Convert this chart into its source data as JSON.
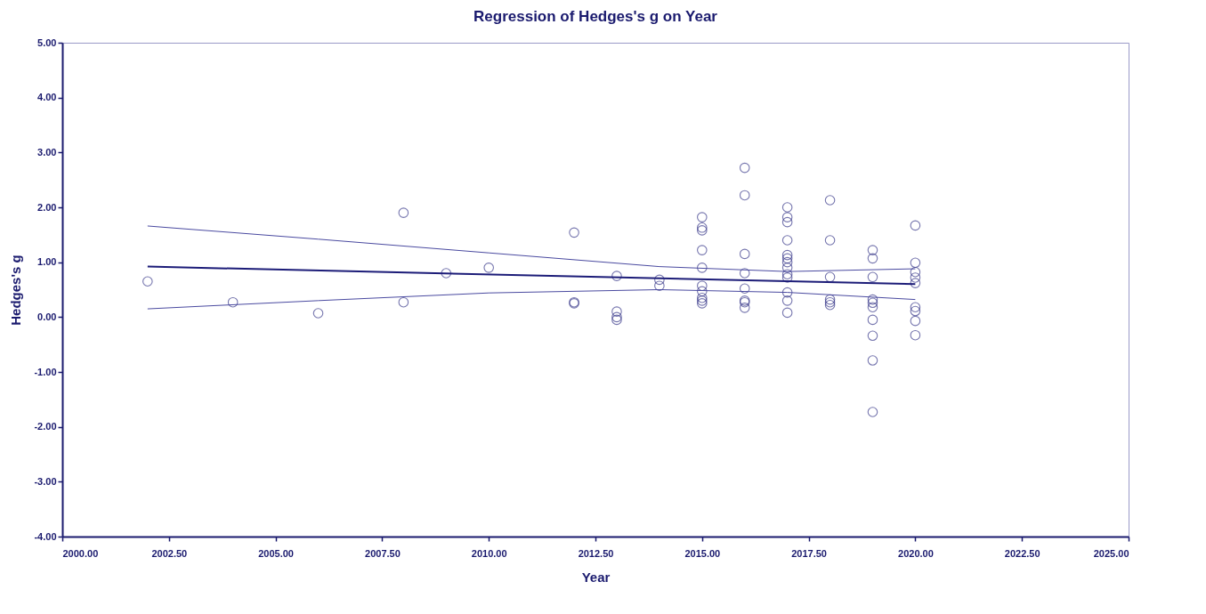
{
  "chart_data": {
    "type": "scatter",
    "title": "Regression of Hedges's g on Year",
    "xlabel": "Year",
    "ylabel": "Hedges's g",
    "grid": false,
    "xlim": [
      2000,
      2025
    ],
    "xticks": [
      {
        "value": 2000,
        "label": "2000.00"
      },
      {
        "value": 2002.5,
        "label": "2002.50"
      },
      {
        "value": 2005,
        "label": "2005.00"
      },
      {
        "value": 2007.5,
        "label": "2007.50"
      },
      {
        "value": 2010,
        "label": "2010.00"
      },
      {
        "value": 2012.5,
        "label": "2012.50"
      },
      {
        "value": 2015,
        "label": "2015.00"
      },
      {
        "value": 2017.5,
        "label": "2017.50"
      },
      {
        "value": 2020,
        "label": "2020.00"
      },
      {
        "value": 2022.5,
        "label": "2022.50"
      },
      {
        "value": 2025,
        "label": "2025.00"
      }
    ],
    "ylim": [
      -4,
      5
    ],
    "yticks": [
      {
        "value": -4,
        "label": "-4.00"
      },
      {
        "value": -3,
        "label": "-3.00"
      },
      {
        "value": -2,
        "label": "-2.00"
      },
      {
        "value": -1,
        "label": "-1.00"
      },
      {
        "value": 0,
        "label": "0.00"
      },
      {
        "value": 1,
        "label": "1.00"
      },
      {
        "value": 2,
        "label": "2.00"
      },
      {
        "value": 3,
        "label": "3.00"
      },
      {
        "value": 4,
        "label": "4.00"
      },
      {
        "value": 5,
        "label": "5.00"
      }
    ],
    "series": [
      {
        "marker": "circle",
        "color": "#3c3c8c",
        "x": [
          2002,
          2004,
          2006,
          2008,
          2008,
          2009,
          2010,
          2012,
          2012,
          2012,
          2013,
          2013,
          2013,
          2013,
          2014,
          2014,
          2015,
          2015,
          2015,
          2015,
          2015,
          2015,
          2015,
          2015,
          2015,
          2015,
          2016,
          2016,
          2016,
          2016,
          2016,
          2016,
          2016,
          2016,
          2017,
          2017,
          2017,
          2017,
          2017,
          2017,
          2017,
          2017,
          2017,
          2017,
          2017,
          2017,
          2017,
          2018,
          2018,
          2018,
          2018,
          2018,
          2018,
          2019,
          2019,
          2019,
          2019,
          2019,
          2019,
          2019,
          2019,
          2019,
          2019,
          2020,
          2020,
          2020,
          2020,
          2020,
          2020,
          2020,
          2020,
          2020
        ],
        "values": [
          0.65,
          0.27,
          0.07,
          1.9,
          0.27,
          0.8,
          0.9,
          1.54,
          0.27,
          0.25,
          0.75,
          0.1,
          0.0,
          -0.05,
          0.68,
          0.57,
          1.82,
          1.63,
          1.58,
          1.22,
          0.9,
          0.57,
          0.47,
          0.35,
          0.3,
          0.25,
          2.72,
          2.22,
          1.15,
          0.8,
          0.52,
          0.3,
          0.27,
          0.17,
          2.0,
          1.82,
          1.73,
          1.4,
          1.13,
          1.07,
          1.0,
          0.9,
          0.78,
          0.72,
          0.45,
          0.3,
          0.08,
          2.13,
          1.4,
          0.73,
          0.32,
          0.27,
          0.22,
          1.22,
          1.07,
          0.73,
          0.32,
          0.26,
          0.18,
          -0.05,
          -0.34,
          -0.79,
          -1.73,
          1.67,
          0.99,
          0.82,
          0.72,
          0.62,
          0.18,
          0.11,
          -0.07,
          -0.33
        ]
      },
      {
        "type": "line",
        "marker": "none",
        "color": "#1c1c78",
        "x": [
          2002,
          2020
        ],
        "values": [
          0.92,
          0.6
        ]
      },
      {
        "type": "line",
        "marker": "none",
        "color": "#4a4aa0",
        "x": [
          2002,
          2006,
          2010,
          2014,
          2017,
          2020
        ],
        "values": [
          1.66,
          1.42,
          1.17,
          0.92,
          0.83,
          0.88
        ]
      },
      {
        "type": "line",
        "marker": "none",
        "color": "#4a4aa0",
        "x": [
          2002,
          2006,
          2010,
          2014,
          2017,
          2020
        ],
        "values": [
          0.15,
          0.3,
          0.44,
          0.5,
          0.45,
          0.32
        ]
      }
    ]
  }
}
